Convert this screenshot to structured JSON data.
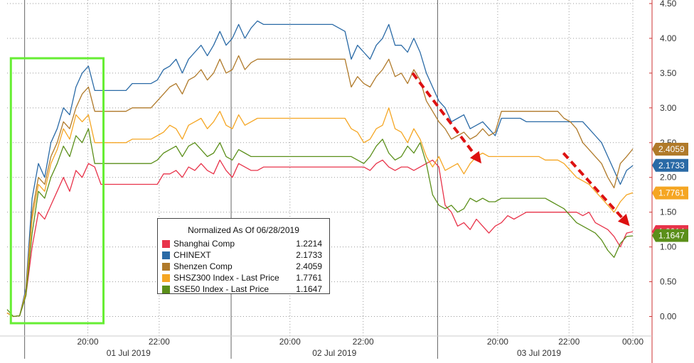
{
  "chart_data": {
    "type": "line",
    "title": "",
    "xlabel": "",
    "ylabel": "",
    "ylim": [
      -0.25,
      4.5
    ],
    "yticks": [
      "0.00",
      "0.50",
      "1.00",
      "1.50",
      "2.00",
      "2.50",
      "3.00",
      "3.50",
      "4.00",
      "4.50"
    ],
    "ytick_values": [
      0,
      0.5,
      1,
      1.5,
      2,
      2.5,
      3,
      3.5,
      4,
      4.5
    ],
    "xlim": [
      0,
      100
    ],
    "grid": true,
    "time_ticks": [
      {
        "x": 12.9,
        "label": "20:00"
      },
      {
        "x": 24.3,
        "label": "22:00"
      },
      {
        "x": 45.2,
        "label": "20:00"
      },
      {
        "x": 56.9,
        "label": "22:00"
      },
      {
        "x": 78.4,
        "label": "20:00"
      },
      {
        "x": 89.8,
        "label": "22:00"
      },
      {
        "x": 101.2,
        "label": "00:00"
      }
    ],
    "date_labels": [
      {
        "x": 19.4,
        "label": "01 Jul 2019"
      },
      {
        "x": 52.3,
        "label": "02 Jul 2019"
      },
      {
        "x": 85.0,
        "label": "03 Jul 2019"
      }
    ],
    "day_boundaries": [
      2.8,
      35.8,
      68.8
    ],
    "legend": {
      "title": "Normalized As Of 06/28/2019",
      "placement": "center-left"
    },
    "series": [
      {
        "name": "Shanghai Comp",
        "color": "#e8334a",
        "last": "1.2214",
        "last_value": 1.2214,
        "x": [
          0,
          1,
          2,
          3,
          4,
          5,
          6,
          7,
          8,
          9,
          10,
          11,
          12,
          13,
          14,
          15,
          16,
          17,
          18,
          19,
          20,
          21,
          22,
          23,
          24,
          25,
          26,
          27,
          28,
          29,
          30,
          31,
          32,
          33,
          34,
          35,
          36,
          37,
          38,
          39,
          40,
          41,
          42,
          43,
          44,
          45,
          46,
          47,
          48,
          49,
          50,
          51,
          52,
          53,
          54,
          55,
          56,
          57,
          58,
          59,
          60,
          61,
          62,
          63,
          64,
          65,
          66,
          67,
          68,
          69,
          70,
          71,
          72,
          73,
          74,
          75,
          76,
          77,
          78,
          79,
          80,
          81,
          82,
          83,
          84,
          85,
          86,
          87,
          88,
          89,
          90,
          91,
          92,
          93,
          94,
          95,
          96,
          97,
          98,
          99,
          100
        ],
        "y": [
          0.05,
          0.0,
          0.01,
          0.3,
          1.0,
          1.5,
          1.4,
          1.6,
          1.8,
          2.0,
          1.8,
          2.1,
          2.0,
          2.2,
          2.15,
          1.9,
          1.9,
          1.9,
          1.9,
          1.9,
          1.9,
          1.9,
          1.9,
          1.9,
          1.9,
          2.05,
          2.05,
          2.1,
          2.0,
          2.15,
          2.1,
          2.2,
          2.1,
          2.05,
          2.25,
          2.1,
          2.0,
          2.2,
          2.15,
          2.1,
          2.1,
          2.15,
          2.15,
          2.15,
          2.15,
          2.15,
          2.15,
          2.15,
          2.15,
          2.15,
          2.15,
          2.15,
          2.15,
          2.15,
          2.15,
          2.15,
          2.15,
          2.15,
          2.1,
          2.2,
          2.25,
          2.15,
          2.1,
          2.15,
          2.15,
          2.1,
          2.15,
          2.2,
          2.25,
          2.15,
          1.6,
          1.5,
          1.3,
          1.35,
          1.25,
          1.4,
          1.3,
          1.2,
          1.3,
          1.35,
          1.45,
          1.4,
          1.45,
          1.5,
          1.5,
          1.5,
          1.5,
          1.5,
          1.5,
          1.5,
          1.5,
          1.5,
          1.45,
          1.5,
          1.35,
          1.3,
          1.25,
          1.15,
          1.0,
          1.2,
          1.22
        ]
      },
      {
        "name": "CHINEXT",
        "color": "#2a6aa6",
        "last": "2.1733",
        "last_value": 2.1733,
        "x": [
          0,
          1,
          2,
          3,
          4,
          5,
          6,
          7,
          8,
          9,
          10,
          11,
          12,
          13,
          14,
          15,
          16,
          17,
          18,
          19,
          20,
          21,
          22,
          23,
          24,
          25,
          26,
          27,
          28,
          29,
          30,
          31,
          32,
          33,
          34,
          35,
          36,
          37,
          38,
          39,
          40,
          41,
          42,
          43,
          44,
          45,
          46,
          47,
          48,
          49,
          50,
          51,
          52,
          53,
          54,
          55,
          56,
          57,
          58,
          59,
          60,
          61,
          62,
          63,
          64,
          65,
          66,
          67,
          68,
          69,
          70,
          71,
          72,
          73,
          74,
          75,
          76,
          77,
          78,
          79,
          80,
          81,
          82,
          83,
          84,
          85,
          86,
          87,
          88,
          89,
          90,
          91,
          92,
          93,
          94,
          95,
          96,
          97,
          98,
          99,
          100
        ],
        "y": [
          0.05,
          0.0,
          0.01,
          0.4,
          1.7,
          2.2,
          2.0,
          2.5,
          2.7,
          3.0,
          2.9,
          3.3,
          3.5,
          3.6,
          3.25,
          3.25,
          3.25,
          3.25,
          3.25,
          3.25,
          3.35,
          3.35,
          3.35,
          3.35,
          3.4,
          3.55,
          3.6,
          3.7,
          3.5,
          3.7,
          3.8,
          3.9,
          3.75,
          3.9,
          4.1,
          3.9,
          4.0,
          4.2,
          4.0,
          4.15,
          4.25,
          4.2,
          4.2,
          4.2,
          4.2,
          4.2,
          4.2,
          4.2,
          4.2,
          4.2,
          4.2,
          4.2,
          4.2,
          4.15,
          4.1,
          3.7,
          3.9,
          3.8,
          3.7,
          3.9,
          4.0,
          4.2,
          3.9,
          3.9,
          3.8,
          4.0,
          3.8,
          3.5,
          3.3,
          3.1,
          3.0,
          2.8,
          2.85,
          2.9,
          2.7,
          2.75,
          2.8,
          2.7,
          2.6,
          2.85,
          2.85,
          2.85,
          2.85,
          2.8,
          2.8,
          2.8,
          2.8,
          2.8,
          2.8,
          2.8,
          2.8,
          2.8,
          2.8,
          2.7,
          2.6,
          2.5,
          2.3,
          2.1,
          1.9,
          2.1,
          2.17
        ]
      },
      {
        "name": "Shenzen Comp",
        "color": "#b07a2a",
        "last": "2.4059",
        "last_value": 2.4059,
        "x": [
          0,
          1,
          2,
          3,
          4,
          5,
          6,
          7,
          8,
          9,
          10,
          11,
          12,
          13,
          14,
          15,
          16,
          17,
          18,
          19,
          20,
          21,
          22,
          23,
          24,
          25,
          26,
          27,
          28,
          29,
          30,
          31,
          32,
          33,
          34,
          35,
          36,
          37,
          38,
          39,
          40,
          41,
          42,
          43,
          44,
          45,
          46,
          47,
          48,
          49,
          50,
          51,
          52,
          53,
          54,
          55,
          56,
          57,
          58,
          59,
          60,
          61,
          62,
          63,
          64,
          65,
          66,
          67,
          68,
          69,
          70,
          71,
          72,
          73,
          74,
          75,
          76,
          77,
          78,
          79,
          80,
          81,
          82,
          83,
          84,
          85,
          86,
          87,
          88,
          89,
          90,
          91,
          92,
          93,
          94,
          95,
          96,
          97,
          98,
          99,
          100
        ],
        "y": [
          0.05,
          0.0,
          0.01,
          0.35,
          1.5,
          2.0,
          1.9,
          2.3,
          2.5,
          2.8,
          2.7,
          3.0,
          3.2,
          3.3,
          2.95,
          2.95,
          2.95,
          2.95,
          2.95,
          2.95,
          3.0,
          3.0,
          3.0,
          3.0,
          3.1,
          3.2,
          3.3,
          3.35,
          3.2,
          3.4,
          3.45,
          3.55,
          3.4,
          3.5,
          3.7,
          3.5,
          3.55,
          3.75,
          3.55,
          3.65,
          3.7,
          3.7,
          3.7,
          3.7,
          3.7,
          3.7,
          3.7,
          3.7,
          3.7,
          3.7,
          3.7,
          3.7,
          3.7,
          3.7,
          3.7,
          3.3,
          3.45,
          3.35,
          3.3,
          3.45,
          3.55,
          3.7,
          3.45,
          3.5,
          3.35,
          3.55,
          3.4,
          3.1,
          2.95,
          2.8,
          2.7,
          2.55,
          2.6,
          2.65,
          2.55,
          2.6,
          2.7,
          2.6,
          2.65,
          2.95,
          2.95,
          2.95,
          2.95,
          2.95,
          2.95,
          2.95,
          2.95,
          2.95,
          2.95,
          2.85,
          2.8,
          2.7,
          2.5,
          2.4,
          2.3,
          2.2,
          2.0,
          1.85,
          2.2,
          2.3,
          2.41
        ]
      },
      {
        "name": "SHSZ300 Index - Last Price",
        "color": "#f5a623",
        "last": "1.7761",
        "last_value": 1.7761,
        "x": [
          0,
          1,
          2,
          3,
          4,
          5,
          6,
          7,
          8,
          9,
          10,
          11,
          12,
          13,
          14,
          15,
          16,
          17,
          18,
          19,
          20,
          21,
          22,
          23,
          24,
          25,
          26,
          27,
          28,
          29,
          30,
          31,
          32,
          33,
          34,
          35,
          36,
          37,
          38,
          39,
          40,
          41,
          42,
          43,
          44,
          45,
          46,
          47,
          48,
          49,
          50,
          51,
          52,
          53,
          54,
          55,
          56,
          57,
          58,
          59,
          60,
          61,
          62,
          63,
          64,
          65,
          66,
          67,
          68,
          69,
          70,
          71,
          72,
          73,
          74,
          75,
          76,
          77,
          78,
          79,
          80,
          81,
          82,
          83,
          84,
          85,
          86,
          87,
          88,
          89,
          90,
          91,
          92,
          93,
          94,
          95,
          96,
          97,
          98,
          99,
          100
        ],
        "y": [
          0.05,
          0.0,
          0.01,
          0.35,
          1.4,
          1.9,
          1.8,
          2.2,
          2.4,
          2.7,
          2.55,
          2.9,
          2.8,
          2.9,
          2.5,
          2.5,
          2.5,
          2.5,
          2.5,
          2.5,
          2.55,
          2.55,
          2.55,
          2.55,
          2.6,
          2.65,
          2.75,
          2.7,
          2.55,
          2.75,
          2.8,
          2.85,
          2.7,
          2.8,
          2.95,
          2.75,
          2.7,
          2.9,
          2.75,
          2.8,
          2.85,
          2.85,
          2.85,
          2.85,
          2.85,
          2.85,
          2.85,
          2.85,
          2.85,
          2.85,
          2.85,
          2.85,
          2.85,
          2.85,
          2.85,
          2.7,
          2.65,
          2.5,
          2.55,
          2.7,
          2.75,
          3.0,
          2.7,
          2.65,
          2.5,
          2.7,
          2.55,
          2.3,
          2.15,
          2.3,
          2.1,
          2.15,
          2.2,
          2.05,
          2.2,
          2.3,
          2.35,
          2.3,
          2.3,
          2.3,
          2.3,
          2.3,
          2.3,
          2.3,
          2.3,
          2.3,
          2.25,
          2.25,
          2.25,
          2.2,
          2.1,
          2.0,
          1.95,
          1.9,
          1.8,
          1.7,
          1.6,
          1.5,
          1.65,
          1.75,
          1.78
        ]
      },
      {
        "name": "SSE50 Index - Last Price",
        "color": "#5b8f1a",
        "last": "1.1647",
        "last_value": 1.1647,
        "x": [
          0,
          1,
          2,
          3,
          4,
          5,
          6,
          7,
          8,
          9,
          10,
          11,
          12,
          13,
          14,
          15,
          16,
          17,
          18,
          19,
          20,
          21,
          22,
          23,
          24,
          25,
          26,
          27,
          28,
          29,
          30,
          31,
          32,
          33,
          34,
          35,
          36,
          37,
          38,
          39,
          40,
          41,
          42,
          43,
          44,
          45,
          46,
          47,
          48,
          49,
          50,
          51,
          52,
          53,
          54,
          55,
          56,
          57,
          58,
          59,
          60,
          61,
          62,
          63,
          64,
          65,
          66,
          67,
          68,
          69,
          70,
          71,
          72,
          73,
          74,
          75,
          76,
          77,
          78,
          79,
          80,
          81,
          82,
          83,
          84,
          85,
          86,
          87,
          88,
          89,
          90,
          91,
          92,
          93,
          94,
          95,
          96,
          97,
          98,
          99,
          100
        ],
        "y": [
          0.1,
          0.0,
          0.01,
          0.3,
          1.2,
          1.8,
          1.7,
          2.0,
          2.2,
          2.45,
          2.3,
          2.6,
          2.5,
          2.7,
          2.2,
          2.2,
          2.2,
          2.2,
          2.2,
          2.2,
          2.2,
          2.2,
          2.2,
          2.2,
          2.25,
          2.35,
          2.4,
          2.45,
          2.3,
          2.45,
          2.5,
          2.4,
          2.3,
          2.35,
          2.5,
          2.3,
          2.25,
          2.4,
          2.35,
          2.3,
          2.3,
          2.3,
          2.3,
          2.3,
          2.3,
          2.3,
          2.3,
          2.3,
          2.3,
          2.3,
          2.3,
          2.3,
          2.3,
          2.3,
          2.3,
          2.3,
          2.25,
          2.2,
          2.3,
          2.45,
          2.55,
          2.35,
          2.25,
          2.3,
          2.45,
          2.35,
          2.5,
          2.2,
          1.75,
          1.6,
          1.55,
          1.6,
          1.5,
          1.55,
          1.7,
          1.65,
          1.7,
          1.65,
          1.65,
          1.7,
          1.7,
          1.7,
          1.7,
          1.7,
          1.7,
          1.7,
          1.7,
          1.65,
          1.6,
          1.55,
          1.45,
          1.35,
          1.3,
          1.25,
          1.2,
          1.1,
          0.95,
          0.85,
          1.05,
          1.15,
          1.16
        ]
      }
    ],
    "highlight_box": {
      "x0": 0.6,
      "x1": 15.4
    },
    "arrows": [
      {
        "x0": 64.8,
        "y0": 3.5,
        "x1": 75.8,
        "y1": 2.2
      },
      {
        "x0": 88.9,
        "y0": 2.35,
        "x1": 99.5,
        "y1": 1.3
      }
    ],
    "colors": {
      "grid": "#9a9a9a",
      "axis": "#cc3333",
      "highlight": "#66ee33",
      "arrow": "#dd1111"
    }
  }
}
